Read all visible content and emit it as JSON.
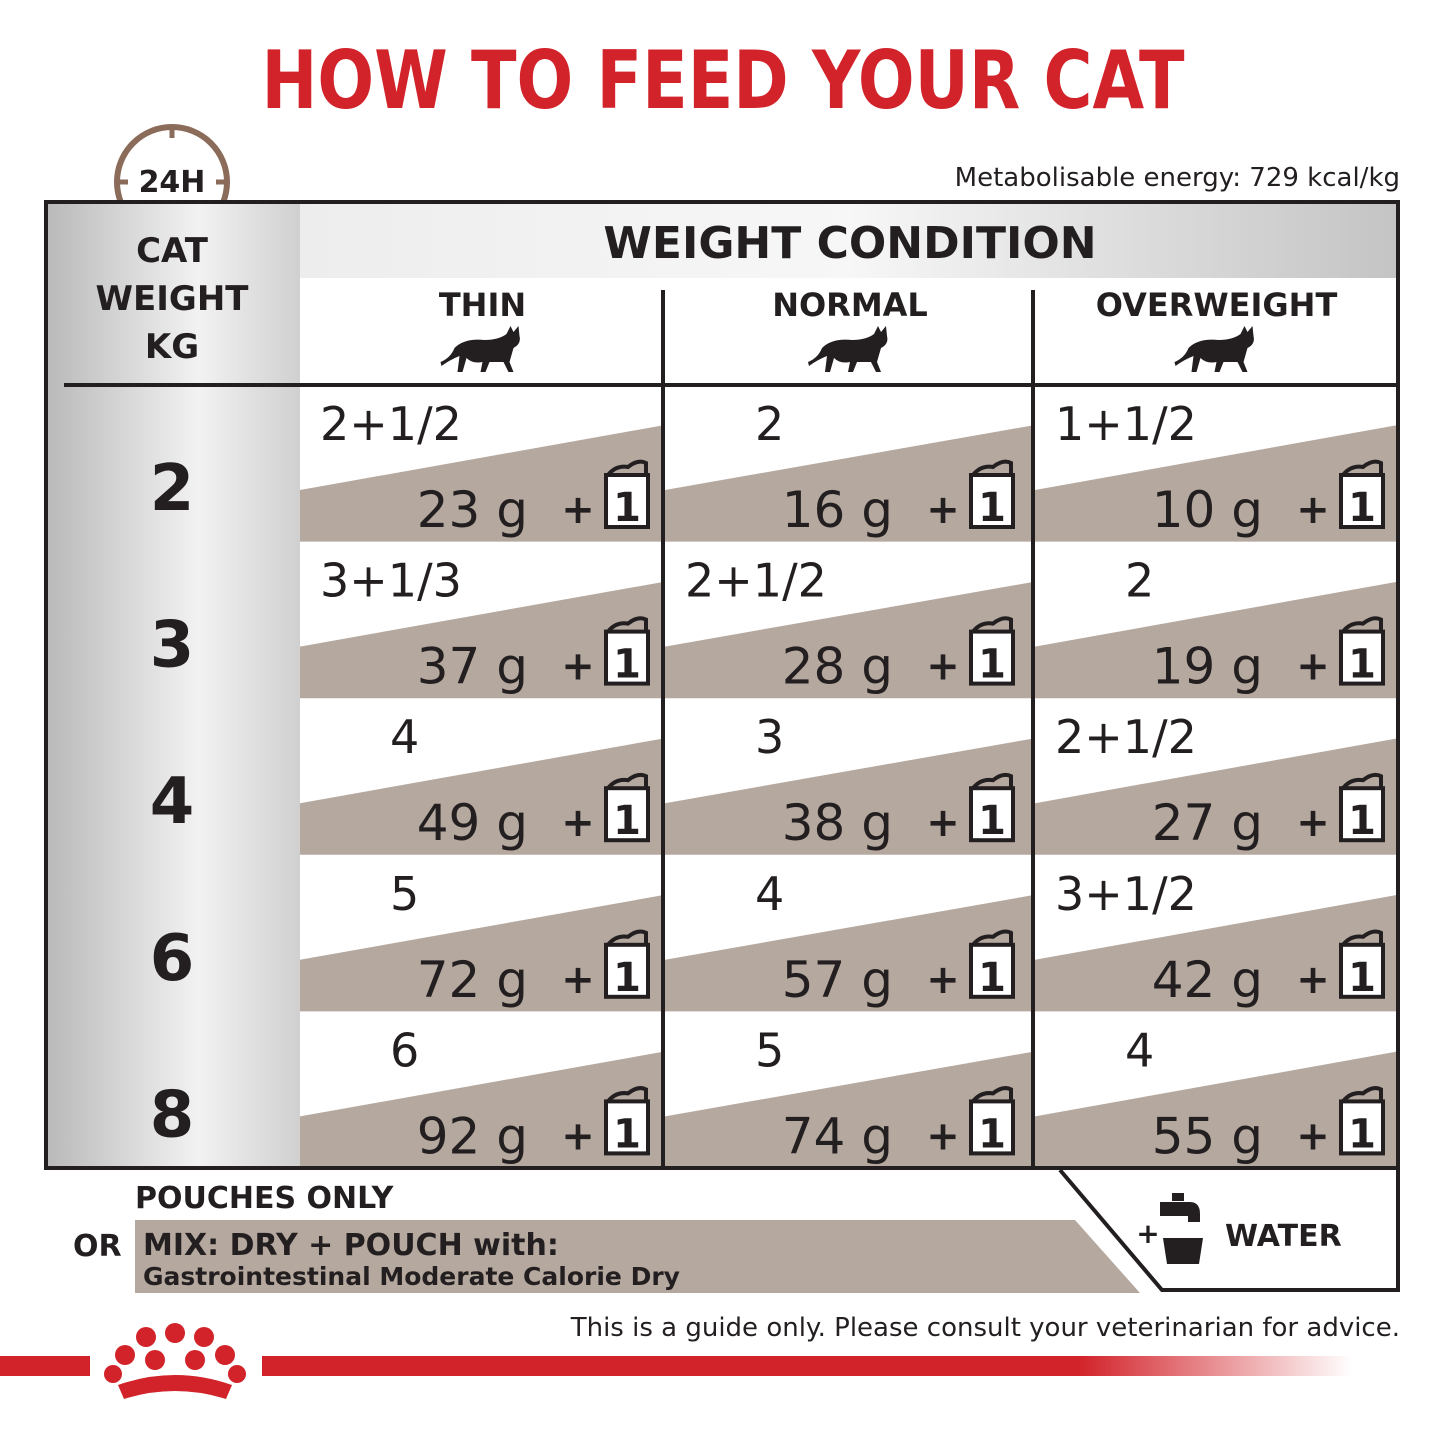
{
  "title": "HOW TO FEED YOUR CAT",
  "badge": "24H",
  "energy": "Metabolisable energy: 729 kcal/kg",
  "table": {
    "weight_header": [
      "CAT",
      "WEIGHT",
      "KG"
    ],
    "condition_header": "WEIGHT CONDITION",
    "columns": [
      "THIN",
      "NORMAL",
      "OVERWEIGHT"
    ],
    "plus": "+",
    "pouch_count": "1",
    "rows": [
      {
        "weight": "2",
        "cells": [
          {
            "pouches": "2+1/2",
            "dry": "23 g"
          },
          {
            "pouches": "2",
            "dry": "16 g"
          },
          {
            "pouches": "1+1/2",
            "dry": "10 g"
          }
        ]
      },
      {
        "weight": "3",
        "cells": [
          {
            "pouches": "3+1/3",
            "dry": "37 g"
          },
          {
            "pouches": "2+1/2",
            "dry": "28 g"
          },
          {
            "pouches": "2",
            "dry": "19 g"
          }
        ]
      },
      {
        "weight": "4",
        "cells": [
          {
            "pouches": "4",
            "dry": "49 g"
          },
          {
            "pouches": "3",
            "dry": "38 g"
          },
          {
            "pouches": "2+1/2",
            "dry": "27 g"
          }
        ]
      },
      {
        "weight": "6",
        "cells": [
          {
            "pouches": "5",
            "dry": "72 g"
          },
          {
            "pouches": "4",
            "dry": "57 g"
          },
          {
            "pouches": "3+1/2",
            "dry": "42 g"
          }
        ]
      },
      {
        "weight": "8",
        "cells": [
          {
            "pouches": "6",
            "dry": "92 g"
          },
          {
            "pouches": "5",
            "dry": "74 g"
          },
          {
            "pouches": "4",
            "dry": "55 g"
          }
        ]
      }
    ]
  },
  "legend": {
    "pouches_only": "POUCHES ONLY",
    "or": "OR",
    "mix": "MIX: DRY + POUCH with:",
    "dry_product": "Gastrointestinal Moderate Calorie Dry",
    "plus": "+",
    "water": "WATER"
  },
  "disclaimer": "This is a guide only. Please consult your veterinarian for advice."
}
